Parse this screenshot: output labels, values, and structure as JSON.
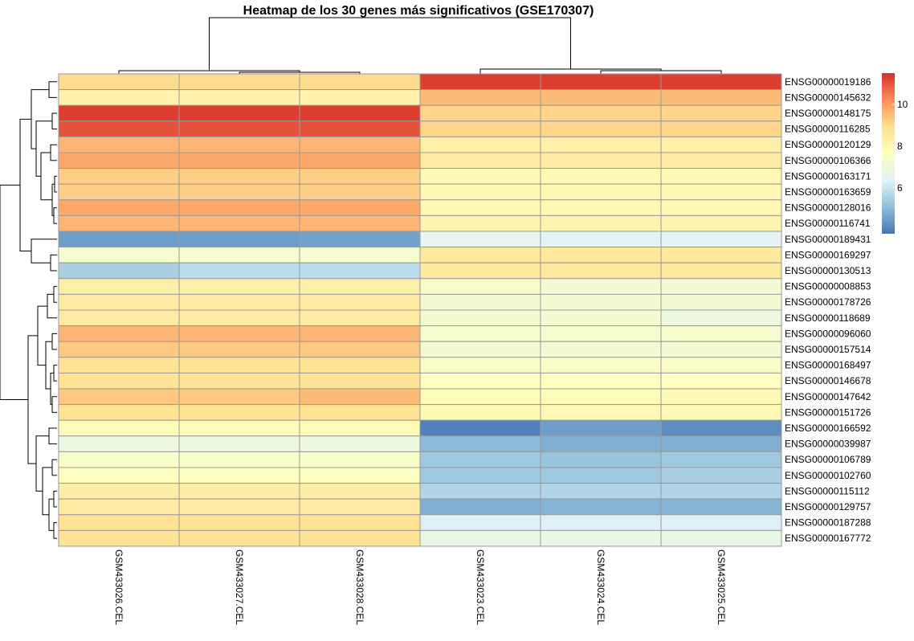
{
  "chart_data": {
    "type": "heatmap",
    "title": "Heatmap de los 30 genes más significativos (GSE170307)",
    "columns": [
      "GSM433026.CEL",
      "GSM433027.CEL",
      "GSM433028.CEL",
      "GSM433023.CEL",
      "GSM433024.CEL",
      "GSM433025.CEL"
    ],
    "rows": [
      "ENSG00000019186",
      "ENSG00000145632",
      "ENSG00000148175",
      "ENSG00000116285",
      "ENSG00000120129",
      "ENSG00000106366",
      "ENSG00000163171",
      "ENSG00000163659",
      "ENSG00000128016",
      "ENSG00000116741",
      "ENSG00000189431",
      "ENSG00000169297",
      "ENSG00000130513",
      "ENSG00000008853",
      "ENSG00000178726",
      "ENSG00000118689",
      "ENSG00000096060",
      "ENSG00000157514",
      "ENSG00000168497",
      "ENSG00000146678",
      "ENSG00000147642",
      "ENSG00000151726",
      "ENSG00000166592",
      "ENSG00000039987",
      "ENSG00000106789",
      "ENSG00000102760",
      "ENSG00000115112",
      "ENSG00000129757",
      "ENSG00000187288",
      "ENSG00000167772"
    ],
    "values": [
      [
        9.0,
        9.0,
        9.0,
        11.3,
        11.3,
        11.3
      ],
      [
        8.2,
        8.2,
        8.2,
        9.5,
        9.5,
        9.5
      ],
      [
        11.3,
        11.3,
        11.3,
        9.1,
        9.1,
        9.1
      ],
      [
        11.0,
        11.0,
        11.0,
        9.1,
        9.1,
        9.1
      ],
      [
        9.6,
        9.6,
        9.6,
        8.3,
        8.3,
        8.3
      ],
      [
        9.8,
        9.8,
        9.8,
        8.5,
        8.5,
        8.5
      ],
      [
        9.2,
        9.2,
        9.2,
        7.9,
        7.9,
        7.9
      ],
      [
        9.2,
        9.2,
        9.2,
        8.0,
        8.0,
        8.0
      ],
      [
        9.8,
        9.8,
        9.8,
        8.0,
        8.0,
        8.0
      ],
      [
        9.6,
        9.6,
        9.6,
        8.1,
        8.1,
        8.1
      ],
      [
        4.5,
        4.5,
        4.6,
        6.6,
        6.5,
        6.5
      ],
      [
        7.3,
        7.3,
        7.3,
        8.6,
        8.6,
        8.6
      ],
      [
        5.5,
        5.8,
        5.8,
        8.6,
        8.6,
        8.6
      ],
      [
        8.3,
        8.3,
        8.3,
        7.4,
        7.2,
        7.2
      ],
      [
        8.5,
        8.5,
        8.5,
        7.2,
        7.2,
        7.2
      ],
      [
        8.5,
        8.5,
        8.5,
        7.2,
        7.2,
        6.9
      ],
      [
        9.6,
        9.6,
        9.6,
        7.3,
        7.3,
        7.3
      ],
      [
        9.3,
        9.3,
        9.3,
        7.2,
        7.2,
        7.2
      ],
      [
        8.8,
        8.8,
        8.8,
        7.4,
        7.4,
        7.4
      ],
      [
        8.8,
        8.8,
        8.8,
        7.6,
        7.6,
        7.6
      ],
      [
        9.3,
        9.3,
        9.5,
        7.8,
        7.8,
        7.9
      ],
      [
        8.8,
        8.8,
        8.8,
        7.9,
        7.9,
        7.9
      ],
      [
        7.8,
        7.8,
        7.8,
        4.0,
        4.5,
        4.2
      ],
      [
        6.9,
        6.9,
        6.9,
        5.0,
        4.8,
        4.8
      ],
      [
        7.4,
        7.4,
        7.4,
        5.3,
        5.2,
        5.3
      ],
      [
        7.6,
        7.6,
        7.6,
        5.3,
        5.3,
        5.5
      ],
      [
        8.4,
        8.4,
        8.4,
        5.6,
        5.6,
        5.6
      ],
      [
        8.5,
        8.5,
        8.5,
        4.8,
        4.9,
        4.9
      ],
      [
        8.9,
        8.9,
        8.9,
        6.3,
        6.3,
        6.3
      ],
      [
        8.8,
        8.8,
        8.8,
        6.8,
        6.8,
        6.8
      ]
    ],
    "legend": {
      "placement": "right",
      "range": [
        3.8,
        11.5
      ],
      "ticks": [
        6,
        8,
        10
      ],
      "colors": [
        "#4575B4",
        "#91BFDB",
        "#E0F3F8",
        "#FFFFBF",
        "#FEE090",
        "#FC8D59",
        "#D73027"
      ]
    },
    "grid_color": "#999999",
    "row_dendrogram_order": [
      "ENSG00000019186",
      "ENSG00000145632",
      "ENSG00000148175",
      "ENSG00000116285",
      "ENSG00000120129",
      "ENSG00000106366",
      "ENSG00000163171",
      "ENSG00000163659",
      "ENSG00000128016",
      "ENSG00000116741",
      "ENSG00000189431",
      "ENSG00000169297",
      "ENSG00000130513",
      "ENSG00000008853",
      "ENSG00000178726",
      "ENSG00000118689",
      "ENSG00000096060",
      "ENSG00000157514",
      "ENSG00000168497",
      "ENSG00000146678",
      "ENSG00000147642",
      "ENSG00000151726",
      "ENSG00000166592",
      "ENSG00000039987",
      "ENSG00000106789",
      "ENSG00000102760",
      "ENSG00000115112",
      "ENSG00000129757",
      "ENSG00000187288",
      "ENSG00000167772"
    ]
  }
}
